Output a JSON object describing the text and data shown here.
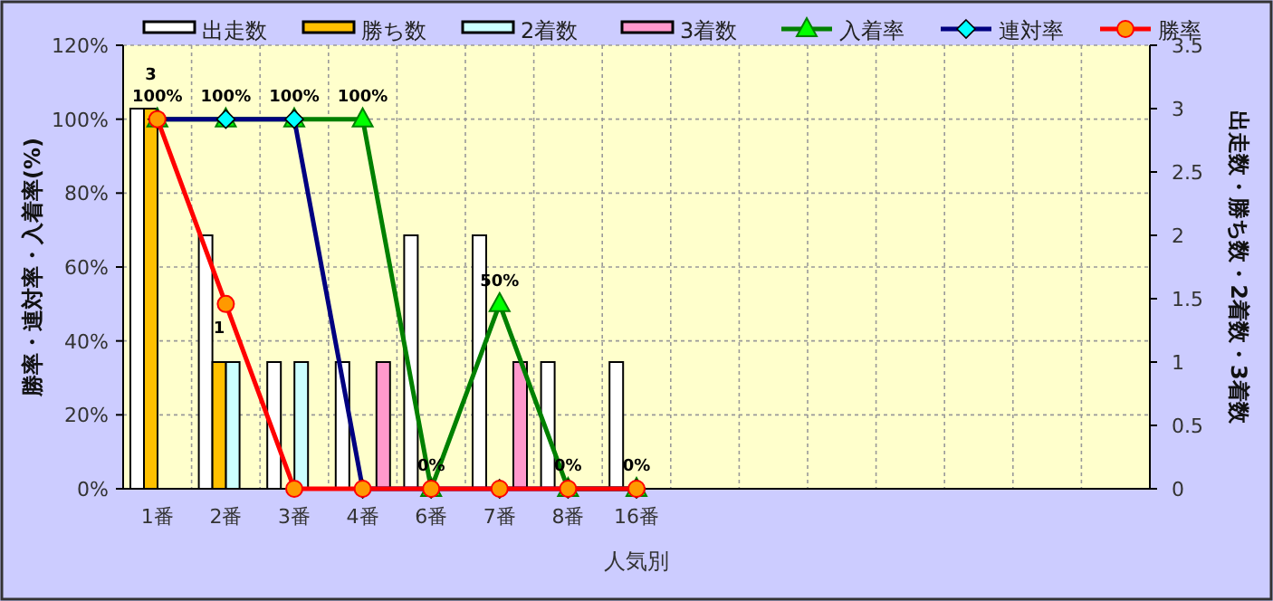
{
  "chart_data": {
    "type": "bar",
    "xlabel": "人気別",
    "ylabel": "勝率・連対率・入着率(%)",
    "y2label": "出走数・勝ち数・2着数・3着数",
    "categories": [
      "1番",
      "2番",
      "3番",
      "4番",
      "6番",
      "7番",
      "8番",
      "16番",
      null,
      null,
      null,
      null,
      null,
      null,
      null
    ],
    "series": [
      {
        "name": "出走数",
        "axis": "y2",
        "color": "#ffffff",
        "values": [
          3,
          2,
          1,
          1,
          2,
          2,
          1,
          1,
          null,
          null,
          null,
          null,
          null,
          null,
          null
        ]
      },
      {
        "name": "勝ち数",
        "axis": "y2",
        "color": "#ffc000",
        "values": [
          3,
          1,
          0,
          0,
          0,
          0,
          0,
          0,
          null,
          null,
          null,
          null,
          null,
          null,
          null
        ],
        "value_labels": [
          "3",
          "1",
          null,
          null,
          null,
          null,
          null,
          null,
          null,
          null,
          null,
          null,
          null,
          null,
          null
        ]
      },
      {
        "name": "2着数",
        "axis": "y2",
        "color": "#ccffff",
        "values": [
          0,
          1,
          1,
          0,
          0,
          0,
          0,
          0,
          null,
          null,
          null,
          null,
          null,
          null,
          null
        ]
      },
      {
        "name": "3着数",
        "axis": "y2",
        "color": "#ff99cc",
        "values": [
          0,
          0,
          0,
          1,
          0,
          1,
          0,
          0,
          null,
          null,
          null,
          null,
          null,
          null,
          null
        ]
      },
      {
        "name": "入着率",
        "type": "line",
        "axis": "y",
        "color": "#008000",
        "marker": "triangle",
        "values": [
          100,
          100,
          100,
          100,
          0,
          50,
          0,
          0,
          null,
          null,
          null,
          null,
          null,
          null,
          null
        ],
        "value_labels": [
          "100%",
          "100%",
          "100%",
          "100%",
          "0%",
          "50%",
          "0%",
          "0%",
          null,
          null,
          null,
          null,
          null,
          null,
          null
        ]
      },
      {
        "name": "連対率",
        "type": "line",
        "axis": "y",
        "color": "#000080",
        "marker": "diamond",
        "values": [
          100,
          100,
          100,
          0,
          0,
          0,
          0,
          0,
          null,
          null,
          null,
          null,
          null,
          null,
          null
        ]
      },
      {
        "name": "勝率",
        "type": "line",
        "axis": "y",
        "color": "#ff0000",
        "marker": "circle",
        "values": [
          100,
          50,
          0,
          0,
          0,
          0,
          0,
          0,
          null,
          null,
          null,
          null,
          null,
          null,
          null
        ]
      }
    ],
    "ylim": [
      0,
      120
    ],
    "yticks": [
      {
        "value": 0,
        "label": "0%"
      },
      {
        "value": 20,
        "label": "20%"
      },
      {
        "value": 40,
        "label": "40%"
      },
      {
        "value": 60,
        "label": "60%"
      },
      {
        "value": 80,
        "label": "80%"
      },
      {
        "value": 100,
        "label": "100%"
      },
      {
        "value": 120,
        "label": "120%"
      }
    ],
    "y2lim": [
      0,
      3.5
    ],
    "y2ticks": [
      0,
      0.5,
      1,
      1.5,
      2,
      2.5,
      3,
      3.5
    ],
    "grid": true,
    "legend": "top"
  }
}
